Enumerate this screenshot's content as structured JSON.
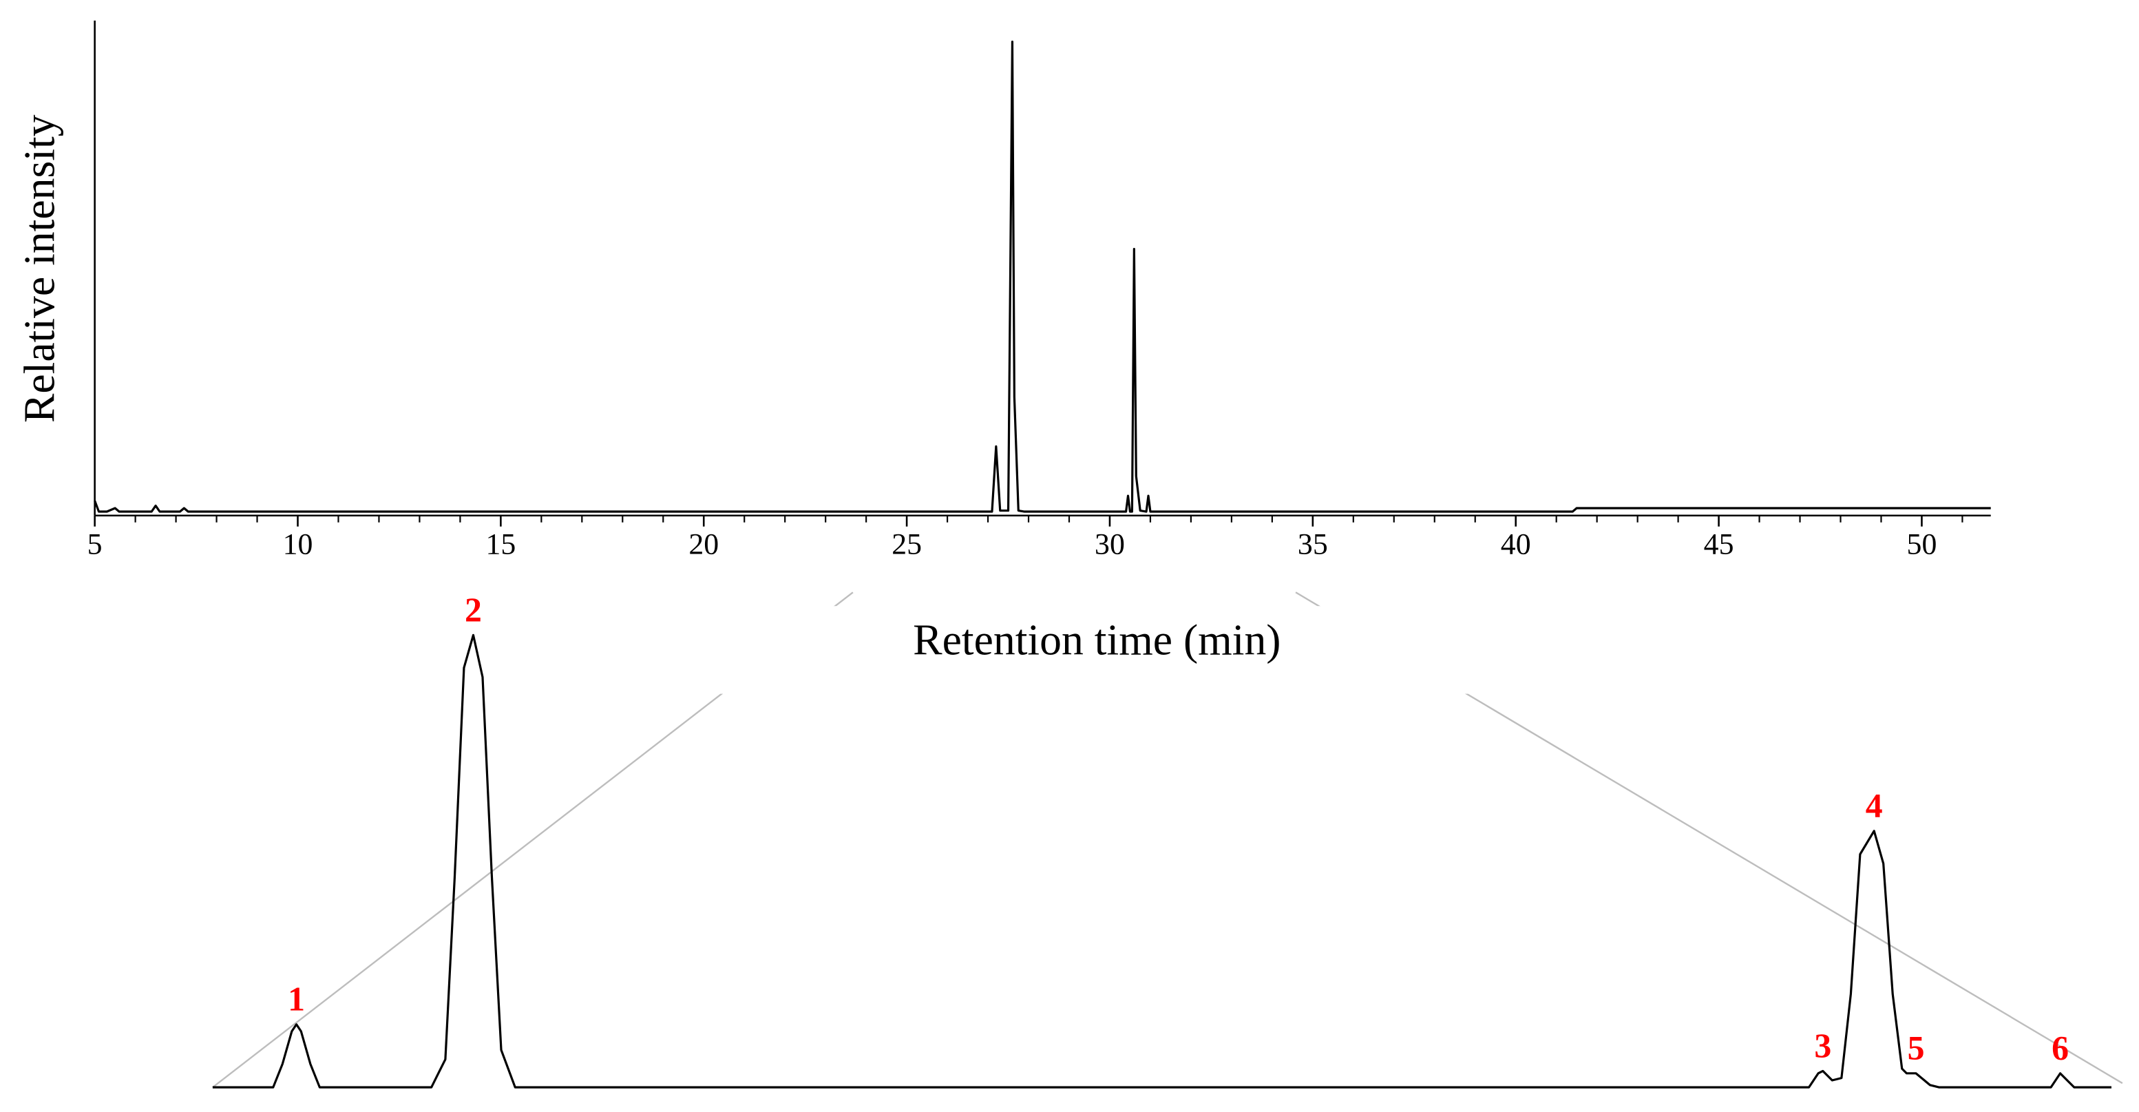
{
  "chart_data": [
    {
      "type": "line",
      "x_label": "Retention time (min)",
      "y_label": "Relative intensity",
      "color": "#000000",
      "x": [
        5,
        5.1,
        5.3,
        5.5,
        5.6,
        6.0,
        6.4,
        6.5,
        6.6,
        7.1,
        7.2,
        7.3,
        27.1,
        27.2,
        27.3,
        27.5,
        27.6,
        27.65,
        27.75,
        27.9,
        30.4,
        30.45,
        30.5,
        30.55,
        30.6,
        30.65,
        30.75,
        30.9,
        30.95,
        31.0,
        31.05,
        41.4,
        41.5,
        51.7
      ],
      "values": [
        3,
        0.8,
        0.8,
        1.5,
        0.8,
        0.8,
        0.8,
        2,
        0.8,
        0.8,
        1.5,
        0.8,
        0.8,
        14,
        1,
        1,
        96,
        24,
        1,
        0.8,
        0.8,
        4,
        0.8,
        0.8,
        54,
        8,
        1,
        0.8,
        4,
        0.8,
        0.8,
        0.8,
        1.5,
        1.5
      ],
      "xlim": [
        5,
        51.7
      ],
      "ylim": [
        0,
        100
      ],
      "xticks": [
        5,
        10,
        15,
        20,
        25,
        30,
        35,
        40,
        45,
        50
      ],
      "xminorticks": [
        6,
        7,
        8,
        9,
        11,
        12,
        13,
        14,
        16,
        17,
        18,
        19,
        21,
        22,
        23,
        24,
        26,
        27,
        28,
        29,
        31,
        32,
        33,
        34,
        36,
        37,
        38,
        39,
        41,
        42,
        43,
        44,
        46,
        47,
        48,
        49,
        51
      ]
    },
    {
      "type": "line",
      "color": "#000000",
      "label_color": "#ff0000",
      "x": [
        27.03,
        27.16,
        27.18,
        27.2,
        27.21,
        27.22,
        27.24,
        27.26,
        27.5,
        27.53,
        27.55,
        27.57,
        27.59,
        27.61,
        27.63,
        27.65,
        27.68,
        30.46,
        30.48,
        30.49,
        30.51,
        30.53,
        30.55,
        30.57,
        30.6,
        30.62,
        30.64,
        30.66,
        30.67,
        30.69,
        30.72,
        30.74,
        30.98,
        31.0,
        31.03,
        31.11
      ],
      "values": [
        0,
        0,
        5,
        12,
        13.5,
        12,
        5,
        0,
        0,
        6,
        45,
        90,
        97,
        88,
        45,
        8,
        0,
        0,
        3,
        3.5,
        1.5,
        2,
        20,
        50,
        55,
        48,
        20,
        4,
        3,
        3,
        0.5,
        0,
        0,
        3,
        0,
        0
      ],
      "xlim": [
        27.03,
        31.11
      ],
      "ylim": [
        0,
        100
      ],
      "peaks": [
        {
          "label": "1",
          "x": 27.21,
          "y": 13.5
        },
        {
          "label": "2",
          "x": 27.59,
          "y": 97
        },
        {
          "label": "3",
          "x": 30.49,
          "y": 3.5
        },
        {
          "label": "4",
          "x": 30.6,
          "y": 55
        },
        {
          "label": "5",
          "x": 30.69,
          "y": 3
        },
        {
          "label": "6",
          "x": 31.0,
          "y": 3
        }
      ]
    }
  ]
}
